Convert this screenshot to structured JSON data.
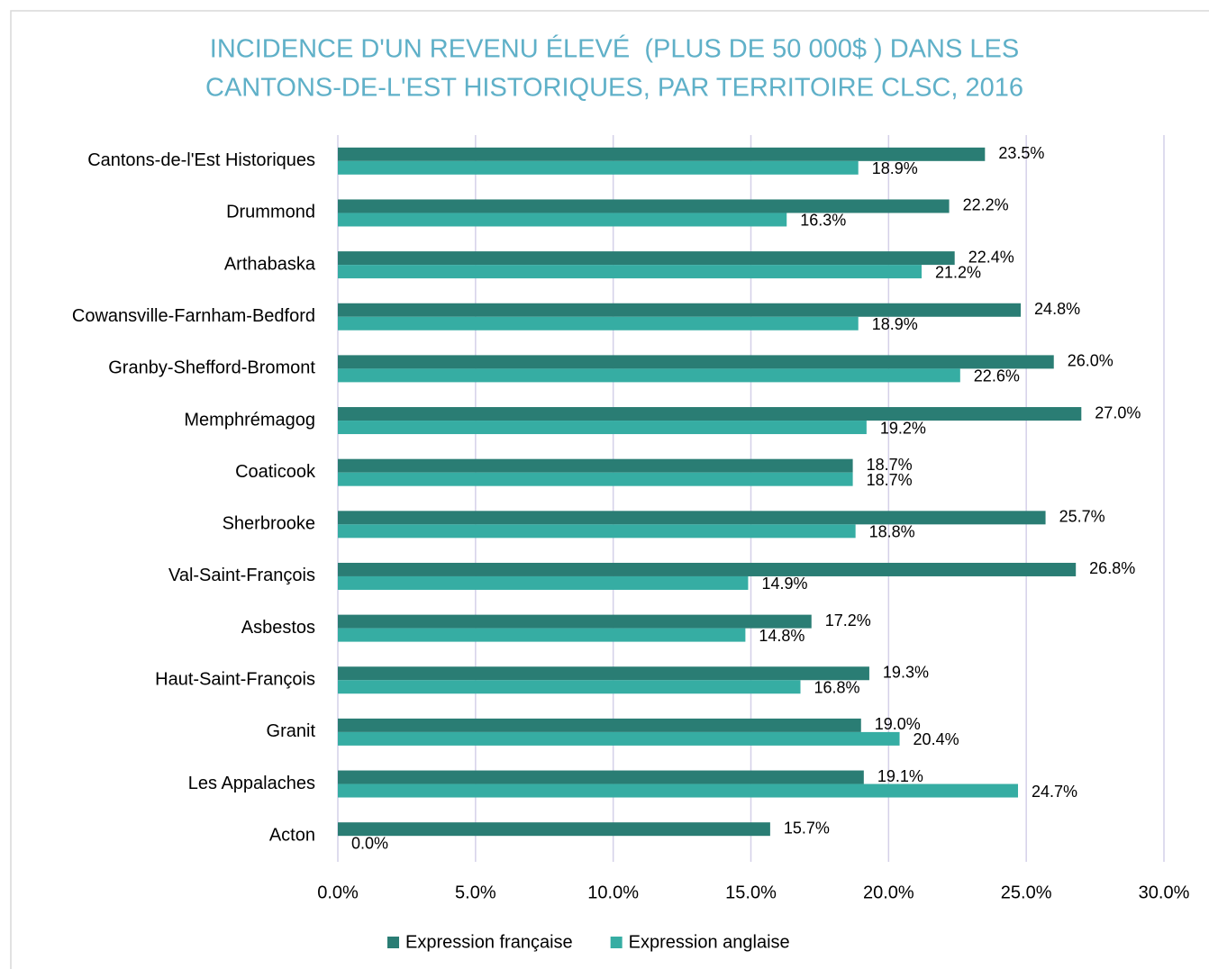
{
  "chart_data": {
    "type": "barh",
    "title": [
      "INCIDENCE D'UN REVENU ÉLEVÉ  (PLUS DE 50 000$ ) DANS LES",
      "CANTONS-DE-L'EST HISTORIQUES, PAR TERRITOIRE CLSC, 2016"
    ],
    "categories": [
      "Cantons-de-l'Est Historiques",
      "Drummond",
      "Arthabaska",
      "Cowansville-Farnham-Bedford",
      "Granby-Shefford-Bromont",
      "Memphrémagog",
      "Coaticook",
      "Sherbrooke",
      "Val-Saint-François",
      "Asbestos",
      "Haut-Saint-François",
      "Granit",
      "Les Appalaches",
      "Acton"
    ],
    "series": [
      {
        "name": "Expression française",
        "color": "#2a7d74",
        "values": [
          23.5,
          22.2,
          22.4,
          24.8,
          26.0,
          27.0,
          18.7,
          25.7,
          26.8,
          17.2,
          19.3,
          19.0,
          19.1,
          15.7
        ],
        "value_labels": [
          "23.5%",
          "22.2%",
          "22.4%",
          "24.8%",
          "26.0%",
          "27.0%",
          "18.7%",
          "25.7%",
          "26.8%",
          "17.2%",
          "19.3%",
          "19.0%",
          "19.1%",
          "15.7%"
        ]
      },
      {
        "name": "Expression anglaise",
        "color": "#36ada3",
        "values": [
          18.9,
          16.3,
          21.2,
          18.9,
          22.6,
          19.2,
          18.7,
          18.8,
          14.9,
          14.8,
          16.8,
          20.4,
          24.7,
          0.0
        ],
        "value_labels": [
          "18.9%",
          "16.3%",
          "21.2%",
          "18.9%",
          "22.6%",
          "19.2%",
          "18.7%",
          "18.8%",
          "14.9%",
          "14.8%",
          "16.8%",
          "20.4%",
          "24.7%",
          "0.0%"
        ]
      }
    ],
    "xlim": [
      0,
      30
    ],
    "xticks": [
      {
        "value": 0,
        "label": "0.0%"
      },
      {
        "value": 5,
        "label": "5.0%"
      },
      {
        "value": 10,
        "label": "10.0%"
      },
      {
        "value": 15,
        "label": "15.0%"
      },
      {
        "value": 20,
        "label": "20.0%"
      },
      {
        "value": 25,
        "label": "25.0%"
      },
      {
        "value": 30,
        "label": "30.0%"
      }
    ],
    "grid": true,
    "legend": "bottom"
  }
}
